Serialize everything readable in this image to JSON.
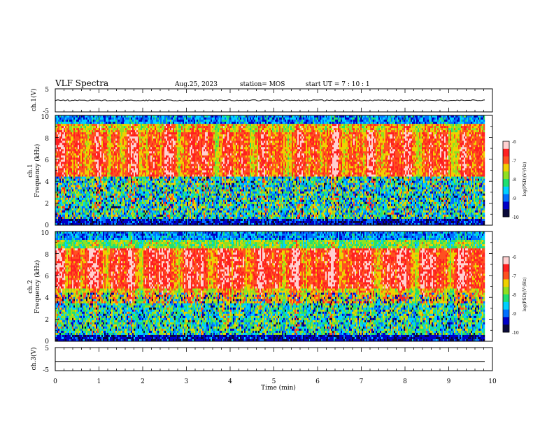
{
  "header": {
    "title": "VLF Spectra",
    "date": "Aug.25, 2023",
    "station": "station= MOS",
    "start_ut": "start  UT =   7 : 10 : 1"
  },
  "colors": {
    "spectrogram": [
      "#0a0a3a",
      "#0000c8",
      "#0070ff",
      "#00d0ff",
      "#20e070",
      "#90e020",
      "#f0d000",
      "#ff5020",
      "#ff2020",
      "#ffd0d0"
    ]
  },
  "chart_data": [
    {
      "type": "line",
      "name": "ch1-waveform",
      "ylabel": "ch.1(V)",
      "ylim": [
        -5,
        5
      ],
      "yticks": [
        "5",
        "-5"
      ],
      "xlim": [
        0,
        10
      ],
      "level": 0
    },
    {
      "type": "heatmap",
      "name": "ch1-spectrogram",
      "ylabel_lines": [
        "ch.1",
        "Frequency (kHz)"
      ],
      "ylim": [
        0,
        10
      ],
      "yticks": [
        "0",
        "2",
        "4",
        "6",
        "8",
        "10"
      ],
      "xlim": [
        0,
        10
      ],
      "data_end_min": 9.85,
      "colorbar": {
        "label": "log(PSD)(V²/Hz)",
        "range": [
          -10,
          -6
        ],
        "ticks": [
          "-6",
          "-7",
          "-8",
          "-9",
          "-10"
        ]
      }
    },
    {
      "type": "heatmap",
      "name": "ch2-spectrogram",
      "ylabel_lines": [
        "ch.2",
        "Frequency (kHz)"
      ],
      "ylim": [
        0,
        10
      ],
      "yticks": [
        "0",
        "2",
        "4",
        "6",
        "8",
        "10"
      ],
      "xlim": [
        0,
        10
      ],
      "data_end_min": 9.85,
      "colorbar": {
        "label": "log(PSD)(V²/Hz)",
        "range": [
          -10,
          -6
        ],
        "ticks": [
          "-6",
          "-7",
          "-8",
          "-9",
          "-10"
        ]
      }
    },
    {
      "type": "line",
      "name": "ch3-waveform",
      "ylabel": "ch.3(V)",
      "ylim": [
        -5,
        5
      ],
      "yticks": [
        "5",
        "-5"
      ],
      "xlim": [
        0,
        10
      ],
      "level": -1,
      "xlabel": "Time  (min)",
      "xticks": [
        "0",
        "1",
        "2",
        "3",
        "4",
        "5",
        "6",
        "7",
        "8",
        "9",
        "10"
      ]
    }
  ]
}
